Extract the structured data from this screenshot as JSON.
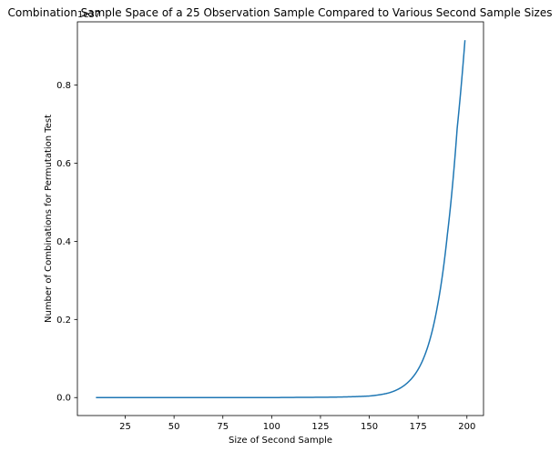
{
  "chart_data": {
    "type": "line",
    "title": "Combination Sample Space of a 25 Observation Sample Compared to Various Second Sample Sizes",
    "xlabel": "Size of Second Sample",
    "ylabel": "Number of Combinations for Permutation Test",
    "offset_text": "1e37",
    "xlim": [
      0.5,
      208.5
    ],
    "ylim": [
      -0.046,
      0.962
    ],
    "x_ticks": [
      25,
      50,
      75,
      100,
      125,
      150,
      175,
      200
    ],
    "y_ticks": [
      0.0,
      0.2,
      0.4,
      0.6,
      0.8
    ],
    "y_tick_labels": [
      "0.0",
      "0.2",
      "0.4",
      "0.6",
      "0.8"
    ],
    "grid": false,
    "line_color": "#1f77b4",
    "series": [
      {
        "x": [
          10,
          100,
          130,
          140,
          150,
          155,
          160,
          165,
          170,
          175,
          180,
          185,
          190,
          195,
          199
        ],
        "values": [
          0.0,
          0.0,
          0.001,
          0.002,
          0.004,
          0.007,
          0.012,
          0.022,
          0.04,
          0.072,
          0.131,
          0.237,
          0.418,
          0.689,
          0.915
        ]
      }
    ]
  }
}
